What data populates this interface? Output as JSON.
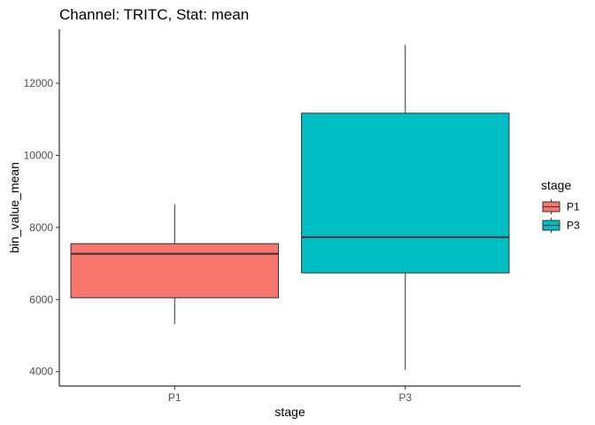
{
  "chart_data": {
    "type": "box",
    "title": "Channel: TRITC, Stat: mean",
    "xlabel": "stage",
    "ylabel": "bin_value_mean",
    "ylim": [
      3600,
      13500
    ],
    "yticks": [
      4000,
      6000,
      8000,
      10000,
      12000
    ],
    "grid": false,
    "legend": {
      "title": "stage",
      "position": "right",
      "entries": [
        "P1",
        "P3"
      ]
    },
    "categories": [
      "P1",
      "P3"
    ],
    "series": [
      {
        "name": "P1",
        "color": "#F8766D",
        "min": 5320,
        "q1": 6050,
        "median": 7270,
        "q3": 7550,
        "max": 8650
      },
      {
        "name": "P3",
        "color": "#00BFC4",
        "min": 4050,
        "q1": 6740,
        "median": 7730,
        "q3": 11170,
        "max": 13060
      }
    ]
  }
}
